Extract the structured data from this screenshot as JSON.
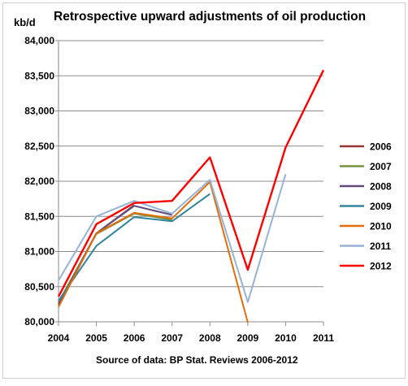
{
  "chart_data": {
    "type": "line",
    "title": "Retrospective upward adjustments of oil production",
    "ylabel": "kb/d",
    "xlabel": "",
    "source": "Source of data: BP Stat. Reviews 2006-2012",
    "x": [
      "2004",
      "2005",
      "2006",
      "2007",
      "2008",
      "2009",
      "2010",
      "2011"
    ],
    "ylim": [
      80000,
      84000
    ],
    "yticks": [
      "80,000",
      "80,500",
      "81,000",
      "81,500",
      "82,000",
      "82,500",
      "83,000",
      "83,500",
      "84,000"
    ],
    "ytick_values": [
      80000,
      80500,
      81000,
      81500,
      82000,
      82500,
      83000,
      83500,
      84000
    ],
    "grid": true,
    "legend_position": "right",
    "series": [
      {
        "name": "2006",
        "color": "#953735",
        "values": [
          80260,
          81260,
          81660,
          null,
          null,
          null,
          null,
          null
        ]
      },
      {
        "name": "2007",
        "color": "#77933c",
        "values": [
          80280,
          81250,
          81540,
          81450,
          null,
          null,
          null,
          null
        ]
      },
      {
        "name": "2008",
        "color": "#604a7b",
        "values": [
          80240,
          81260,
          81650,
          81520,
          null,
          null,
          null,
          null
        ]
      },
      {
        "name": "2009",
        "color": "#31859c",
        "values": [
          80300,
          81080,
          81490,
          81430,
          81820,
          null,
          null,
          null
        ]
      },
      {
        "name": "2010",
        "color": "#e46c0a",
        "values": [
          80210,
          81260,
          81550,
          81470,
          81990,
          79990,
          null,
          null
        ]
      },
      {
        "name": "2011",
        "color": "#95b3d7",
        "values": [
          80590,
          81500,
          81720,
          81540,
          82020,
          80280,
          82100,
          null
        ]
      },
      {
        "name": "2012",
        "color": "#ff0000",
        "values": [
          80360,
          81390,
          81690,
          81720,
          82340,
          80740,
          82480,
          83580
        ]
      }
    ]
  }
}
